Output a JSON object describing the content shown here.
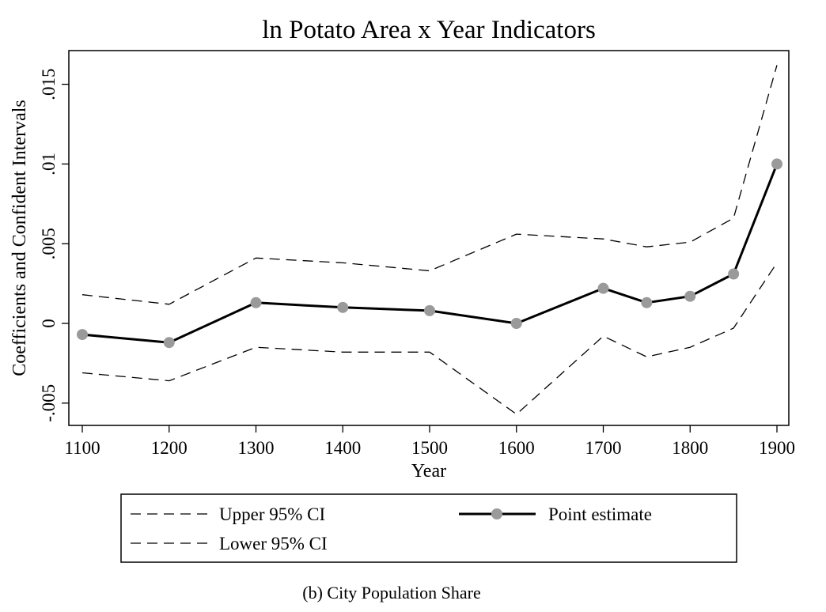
{
  "chart_data": {
    "type": "line",
    "title": "ln Potato Area x Year Indicators",
    "xlabel": "Year",
    "ylabel": "Coefficients and Confident Intervals",
    "caption": "(b) City Population Share",
    "x": [
      1100,
      1200,
      1300,
      1400,
      1500,
      1600,
      1700,
      1750,
      1800,
      1850,
      1900
    ],
    "xlim": [
      1100,
      1900
    ],
    "ylim": [
      -0.0065,
      0.0172
    ],
    "x_ticks": [
      1100,
      1200,
      1300,
      1400,
      1500,
      1600,
      1700,
      1800,
      1900
    ],
    "x_tick_labels": [
      "1100",
      "1200",
      "1300",
      "1400",
      "1500",
      "1600",
      "1700",
      "1800",
      "1900"
    ],
    "y_ticks": [
      -0.005,
      0,
      0.005,
      0.01,
      0.015
    ],
    "y_tick_labels": [
      "-.005",
      "0",
      ".005",
      ".01",
      ".015"
    ],
    "grid": false,
    "legend_position": "bottom",
    "series": [
      {
        "name": "Upper 95% CI",
        "style": "dashed",
        "color": "#000000",
        "values": [
          0.0018,
          0.0012,
          0.0041,
          0.0038,
          0.0033,
          0.0056,
          0.0053,
          0.0048,
          0.0051,
          0.0066,
          0.0162
        ]
      },
      {
        "name": "Lower 95% CI",
        "style": "dashed",
        "color": "#000000",
        "values": [
          -0.0031,
          -0.0036,
          -0.0015,
          -0.0018,
          -0.0018,
          -0.0057,
          -0.0008,
          -0.0021,
          -0.0015,
          -0.0003,
          0.0038
        ]
      },
      {
        "name": "Point estimate",
        "style": "solid",
        "marker": "circle",
        "color": "#000000",
        "marker_color": "#9a9a9a",
        "values": [
          -0.0007,
          -0.0012,
          0.0013,
          0.001,
          0.0008,
          0.0,
          0.0022,
          0.0013,
          0.0017,
          0.0031,
          0.01
        ]
      }
    ]
  }
}
